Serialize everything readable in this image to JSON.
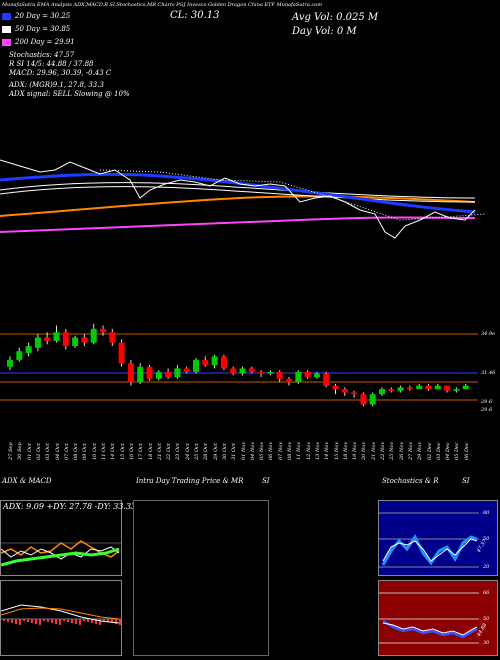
{
  "header": {
    "top_strip": "MunafaSutra  EMA Analysis ADX,MACD,B   SI,Stochastics,MR   Charts PGJ   Invesco Golden Dragon China ETF  MunafaSutra.com",
    "cl_label": "CL: 30.13",
    "avg_vol": "Avg Vol: 0.025 M",
    "day_vol": "Day Vol: 0   M"
  },
  "legend": [
    {
      "label": "20  Day = 30.25",
      "color": "#1e3cff"
    },
    {
      "label": "50  Day = 30.85",
      "color": "#ffffff"
    },
    {
      "label": "200  Day = 29.91",
      "color": "#ff44ff"
    }
  ],
  "indicators": {
    "stochastics": "Stochastics: 47.57",
    "rsi": "R               SI 14/5: 44.88 / 37.88",
    "macd": "MACD: 29.96, 30.39, -0.43 C",
    "adx": "ADX:                          (MGR)9.1,  27.8,  33.3",
    "adx_signal": "ADX  signal: SELL  Slowing @ 10%"
  },
  "price_levels": {
    "level_top": "34.9e",
    "level_mid": "31.46",
    "level_low": "29.6",
    "level_low2": "29.6"
  },
  "dates": [
    "27 Sep",
    "30 Sep",
    "01 Oct",
    "02 Oct",
    "03 Oct",
    "04 Oct",
    "07 Oct",
    "08 Oct",
    "09 Oct",
    "10 Oct",
    "11 Oct",
    "14 Oct",
    "15 Oct",
    "16 Oct",
    "17 Oct",
    "18 Oct",
    "21 Oct",
    "22 Oct",
    "23 Oct",
    "24 Oct",
    "25 Oct",
    "28 Oct",
    "29 Oct",
    "30 Oct",
    "31 Oct",
    "01 Nov",
    "04 Nov",
    "05 Nov",
    "06 Nov",
    "07 Nov",
    "08 Nov",
    "11 Nov",
    "12 Nov",
    "13 Nov",
    "14 Nov",
    "15 Nov",
    "18 Nov",
    "19 Nov",
    "20 Nov",
    "21 Nov",
    "22 Nov",
    "25 Nov",
    "26 Nov",
    "27 Nov",
    "29 Nov",
    "02 Dec",
    "03 Dec",
    "04 Dec",
    "05 Dec",
    "06 Dec"
  ],
  "candles": [
    {
      "o": 31.2,
      "c": 31.6,
      "h": 31.8,
      "l": 31.0
    },
    {
      "o": 31.6,
      "c": 32.1,
      "h": 32.3,
      "l": 31.5
    },
    {
      "o": 32.0,
      "c": 32.4,
      "h": 32.6,
      "l": 31.8
    },
    {
      "o": 32.3,
      "c": 32.9,
      "h": 33.1,
      "l": 32.1
    },
    {
      "o": 32.9,
      "c": 32.7,
      "h": 33.2,
      "l": 32.5
    },
    {
      "o": 32.7,
      "c": 33.2,
      "h": 33.6,
      "l": 32.6
    },
    {
      "o": 33.2,
      "c": 32.4,
      "h": 33.4,
      "l": 32.2
    },
    {
      "o": 32.4,
      "c": 32.9,
      "h": 33.0,
      "l": 32.3
    },
    {
      "o": 32.9,
      "c": 32.6,
      "h": 33.1,
      "l": 32.4
    },
    {
      "o": 32.6,
      "c": 33.4,
      "h": 33.7,
      "l": 32.5
    },
    {
      "o": 33.4,
      "c": 33.2,
      "h": 33.6,
      "l": 33.0
    },
    {
      "o": 33.2,
      "c": 32.6,
      "h": 33.4,
      "l": 32.4
    },
    {
      "o": 32.6,
      "c": 31.4,
      "h": 32.8,
      "l": 31.2
    },
    {
      "o": 31.4,
      "c": 30.3,
      "h": 31.6,
      "l": 30.1
    },
    {
      "o": 30.3,
      "c": 31.2,
      "h": 31.4,
      "l": 30.2
    },
    {
      "o": 31.2,
      "c": 30.5,
      "h": 31.3,
      "l": 30.4
    },
    {
      "o": 30.5,
      "c": 30.9,
      "h": 31.0,
      "l": 30.4
    },
    {
      "o": 30.9,
      "c": 30.6,
      "h": 31.1,
      "l": 30.5
    },
    {
      "o": 30.6,
      "c": 31.1,
      "h": 31.3,
      "l": 30.5
    },
    {
      "o": 31.1,
      "c": 30.9,
      "h": 31.2,
      "l": 30.8
    },
    {
      "o": 30.9,
      "c": 31.6,
      "h": 31.7,
      "l": 30.8
    },
    {
      "o": 31.6,
      "c": 31.3,
      "h": 31.8,
      "l": 31.2
    },
    {
      "o": 31.3,
      "c": 31.8,
      "h": 31.9,
      "l": 31.1
    },
    {
      "o": 31.8,
      "c": 31.1,
      "h": 31.9,
      "l": 31.0
    },
    {
      "o": 31.1,
      "c": 30.8,
      "h": 31.2,
      "l": 30.7
    },
    {
      "o": 30.8,
      "c": 31.1,
      "h": 31.2,
      "l": 30.7
    },
    {
      "o": 31.1,
      "c": 30.9,
      "h": 31.2,
      "l": 30.8
    },
    {
      "o": 30.9,
      "c": 30.8,
      "h": 31.0,
      "l": 30.6
    },
    {
      "o": 30.8,
      "c": 30.9,
      "h": 31.0,
      "l": 30.7
    },
    {
      "o": 30.9,
      "c": 30.5,
      "h": 31.0,
      "l": 30.3
    },
    {
      "o": 30.5,
      "c": 30.3,
      "h": 30.6,
      "l": 30.1
    },
    {
      "o": 30.3,
      "c": 30.9,
      "h": 31.0,
      "l": 30.2
    },
    {
      "o": 30.9,
      "c": 30.6,
      "h": 31.0,
      "l": 30.5
    },
    {
      "o": 30.6,
      "c": 30.8,
      "h": 30.9,
      "l": 30.5
    },
    {
      "o": 30.8,
      "c": 30.1,
      "h": 30.9,
      "l": 30.0
    },
    {
      "o": 30.1,
      "c": 29.9,
      "h": 30.2,
      "l": 29.6
    },
    {
      "o": 29.9,
      "c": 29.7,
      "h": 30.0,
      "l": 29.5
    },
    {
      "o": 29.7,
      "c": 29.6,
      "h": 29.8,
      "l": 29.4
    },
    {
      "o": 29.6,
      "c": 29.0,
      "h": 29.7,
      "l": 28.9
    },
    {
      "o": 29.0,
      "c": 29.6,
      "h": 29.7,
      "l": 28.9
    },
    {
      "o": 29.6,
      "c": 29.9,
      "h": 30.0,
      "l": 29.5
    },
    {
      "o": 29.9,
      "c": 29.8,
      "h": 30.0,
      "l": 29.7
    },
    {
      "o": 29.8,
      "c": 30.0,
      "h": 30.1,
      "l": 29.7
    },
    {
      "o": 30.0,
      "c": 29.9,
      "h": 30.1,
      "l": 29.8
    },
    {
      "o": 29.9,
      "c": 30.1,
      "h": 30.2,
      "l": 29.9
    },
    {
      "o": 30.1,
      "c": 29.9,
      "h": 30.2,
      "l": 29.8
    },
    {
      "o": 29.9,
      "c": 30.1,
      "h": 30.2,
      "l": 29.9
    },
    {
      "o": 30.1,
      "c": 29.8,
      "h": 30.1,
      "l": 29.7
    },
    {
      "o": 29.8,
      "c": 29.9,
      "h": 30.0,
      "l": 29.7
    },
    {
      "o": 29.9,
      "c": 30.1,
      "h": 30.2,
      "l": 29.9
    }
  ],
  "panels": {
    "adx_title": "ADX  & MACD",
    "adx_values": "ADX: 9.09  +DY: 27.78  -DY: 33.33",
    "intra_title": "Intra  Day Trading Price  & MR",
    "intra_si": "SI",
    "stoch_title": "Stochastics & R",
    "stoch_si": "SI",
    "stoch_levels": [
      "80",
      "50",
      "20"
    ],
    "rsi_levels": [
      "66",
      "50",
      "30"
    ],
    "stoch_value": "47.57",
    "rsi_value": "44.88"
  },
  "colors": {
    "up": "#00cc00",
    "down": "#ff0000",
    "ema20": "#1e3cff",
    "ema50": "#ffffff",
    "ema200": "#ff44ff",
    "orange": "#ff8800"
  }
}
